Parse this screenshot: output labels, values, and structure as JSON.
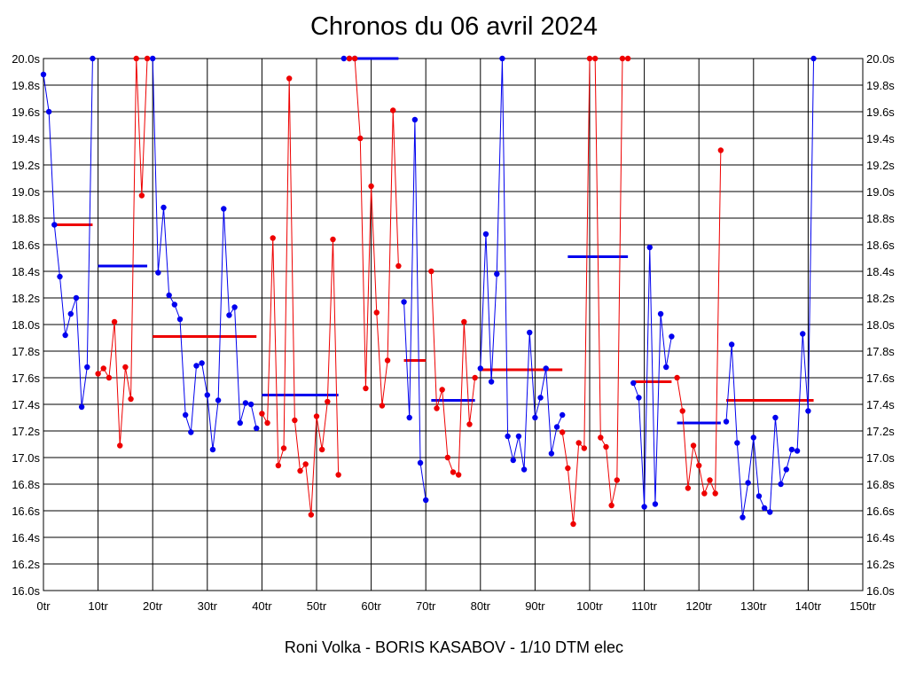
{
  "chart_data": {
    "type": "line",
    "title": "Chronos du 06 avril 2024",
    "footer": "Roni Volka - BORIS KASABOV - 1/10 DTM elec",
    "xlim": [
      0,
      150
    ],
    "ylim": [
      16.0,
      20.0
    ],
    "x_ticks": [
      0,
      10,
      20,
      30,
      40,
      50,
      60,
      70,
      80,
      90,
      100,
      110,
      120,
      130,
      140,
      150
    ],
    "x_tick_labels": [
      "0tr",
      "10tr",
      "20tr",
      "30tr",
      "40tr",
      "50tr",
      "60tr",
      "70tr",
      "80tr",
      "90tr",
      "100tr",
      "110tr",
      "120tr",
      "130tr",
      "140tr",
      "150tr"
    ],
    "y_ticks": [
      16.0,
      16.2,
      16.4,
      16.6,
      16.8,
      17.0,
      17.2,
      17.4,
      17.6,
      17.8,
      18.0,
      18.2,
      18.4,
      18.6,
      18.8,
      19.0,
      19.2,
      19.4,
      19.6,
      19.8,
      20.0
    ],
    "y_tick_labels": [
      "16.0s",
      "16.2s",
      "16.4s",
      "16.6s",
      "16.8s",
      "17.0s",
      "17.2s",
      "17.4s",
      "17.6s",
      "17.8s",
      "18.0s",
      "18.2s",
      "18.4s",
      "18.6s",
      "18.8s",
      "19.0s",
      "19.2s",
      "19.4s",
      "19.6s",
      "19.8s",
      "20.0s"
    ],
    "grid": true,
    "colors": {
      "blue": "#0000ee",
      "red": "#ee0000",
      "grid": "#000000"
    },
    "series": [
      {
        "color": "blue",
        "x": [
          0,
          1,
          2,
          3,
          4,
          5,
          6,
          7,
          8,
          9
        ],
        "y": [
          19.88,
          19.6,
          18.75,
          18.36,
          17.92,
          18.08,
          18.2,
          17.38,
          17.68,
          20.0
        ]
      },
      {
        "color": "red",
        "x": [
          10,
          11,
          12,
          13,
          14,
          15,
          16,
          17,
          18,
          19
        ],
        "y": [
          17.63,
          17.67,
          17.6,
          18.02,
          17.09,
          17.68,
          17.44,
          20.0,
          18.97,
          20.0
        ]
      },
      {
        "color": "blue",
        "x": [
          20,
          21,
          22,
          23,
          24,
          25,
          26,
          27,
          28,
          29,
          30,
          31,
          32,
          33,
          34,
          35,
          36,
          37,
          38,
          39
        ],
        "y": [
          20.0,
          18.39,
          18.88,
          18.22,
          18.15,
          18.04,
          17.32,
          17.19,
          17.69,
          17.71,
          17.47,
          17.06,
          17.43,
          18.87,
          18.07,
          18.13,
          17.26,
          17.41,
          17.4,
          17.22
        ]
      },
      {
        "color": "red",
        "x": [
          40,
          41,
          42,
          43,
          44,
          45,
          46,
          47,
          48,
          49,
          50,
          51,
          52,
          53,
          54
        ],
        "y": [
          17.33,
          17.26,
          18.65,
          16.94,
          17.07,
          19.85,
          17.28,
          16.9,
          16.95,
          16.57,
          17.31,
          17.06,
          17.42,
          18.64,
          16.87
        ]
      },
      {
        "color": "blue",
        "x": [
          55,
          56,
          57
        ],
        "y": [
          20.0,
          20.0,
          20.0
        ]
      },
      {
        "color": "red",
        "x": [
          56,
          57,
          58,
          59,
          60,
          61,
          62,
          63,
          64,
          65
        ],
        "y": [
          20.0,
          20.0,
          19.4,
          17.52,
          19.04,
          18.09,
          17.39,
          17.73,
          19.61,
          18.44
        ]
      },
      {
        "color": "blue",
        "x": [
          66,
          67,
          68,
          69,
          70
        ],
        "y": [
          18.17,
          17.3,
          19.54,
          16.96,
          16.68
        ]
      },
      {
        "color": "red",
        "x": [
          71,
          72,
          73,
          74,
          75,
          76,
          77,
          78,
          79
        ],
        "y": [
          18.4,
          17.37,
          17.51,
          17.0,
          16.89,
          16.87,
          18.02,
          17.25,
          17.6
        ]
      },
      {
        "color": "blue",
        "x": [
          80,
          81,
          82,
          83,
          84,
          85,
          86,
          87,
          88,
          89,
          90,
          91,
          92,
          93,
          94,
          95
        ],
        "y": [
          17.67,
          18.68,
          17.57,
          18.38,
          20.0,
          17.16,
          16.98,
          17.16,
          16.91,
          17.94,
          17.3,
          17.45,
          17.67,
          17.03,
          17.23,
          17.32
        ]
      },
      {
        "color": "red",
        "x": [
          95,
          96,
          97,
          98,
          99,
          100,
          101,
          102,
          103,
          104,
          105,
          106,
          107
        ],
        "y": [
          17.19,
          16.92,
          16.5,
          17.11,
          17.07,
          20.0,
          20.0,
          17.15,
          17.08,
          16.64,
          16.83,
          20.0,
          20.0
        ]
      },
      {
        "color": "blue",
        "x": [
          108,
          109,
          110,
          111,
          112,
          113,
          114,
          115
        ],
        "y": [
          17.56,
          17.45,
          16.63,
          18.58,
          16.65,
          18.08,
          17.68,
          17.91
        ]
      },
      {
        "color": "red",
        "x": [
          116,
          117,
          118,
          119,
          120,
          121,
          122,
          123,
          124
        ],
        "y": [
          17.6,
          17.35,
          16.77,
          17.09,
          16.94,
          16.73,
          16.83,
          16.73,
          19.31
        ]
      },
      {
        "color": "blue",
        "x": [
          125,
          126,
          127,
          128,
          129,
          130,
          131,
          132,
          133,
          134,
          135,
          136,
          137,
          138,
          139,
          140,
          141
        ],
        "y": [
          17.27,
          17.85,
          17.11,
          16.55,
          16.81,
          17.15,
          16.71,
          16.62,
          16.59,
          17.3,
          16.8,
          16.91,
          17.06,
          17.05,
          17.93,
          17.35,
          20.0
        ]
      }
    ],
    "averages": [
      {
        "color": "red",
        "x_start": 2,
        "x_end": 9,
        "y": 18.75
      },
      {
        "color": "blue",
        "x_start": 10,
        "x_end": 19,
        "y": 18.44
      },
      {
        "color": "red",
        "x_start": 20,
        "x_end": 39,
        "y": 17.91
      },
      {
        "color": "blue",
        "x_start": 40,
        "x_end": 54,
        "y": 17.47
      },
      {
        "color": "blue",
        "x_start": 57,
        "x_end": 65,
        "y": 20.0
      },
      {
        "color": "red",
        "x_start": 66,
        "x_end": 70,
        "y": 17.73
      },
      {
        "color": "blue",
        "x_start": 71,
        "x_end": 79,
        "y": 17.43
      },
      {
        "color": "red",
        "x_start": 80,
        "x_end": 95,
        "y": 17.66
      },
      {
        "color": "blue",
        "x_start": 96,
        "x_end": 107,
        "y": 18.51
      },
      {
        "color": "red",
        "x_start": 108,
        "x_end": 115,
        "y": 17.57
      },
      {
        "color": "blue",
        "x_start": 116,
        "x_end": 124,
        "y": 17.26
      },
      {
        "color": "red",
        "x_start": 125,
        "x_end": 141,
        "y": 17.43
      }
    ]
  }
}
